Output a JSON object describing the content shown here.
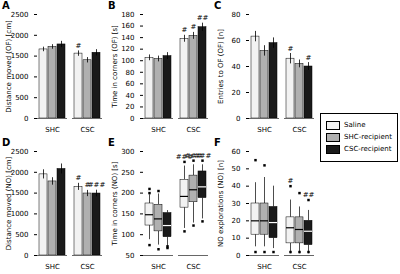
{
  "chart_data": [
    {
      "type": "bar",
      "title": "A",
      "ylabel": "Distance moved (OF) [cm]",
      "categories": [
        "SHC",
        "CSC"
      ],
      "series": [
        {
          "name": "Saline",
          "color": "#f2f2f2",
          "values": [
            1660,
            1560
          ],
          "errors": [
            55,
            65
          ],
          "sig": [
            null,
            "#"
          ]
        },
        {
          "name": "SHC-recipient",
          "color": "#b0b0b0",
          "values": [
            1720,
            1400
          ],
          "errors": [
            55,
            65
          ],
          "sig": [
            null,
            null
          ]
        },
        {
          "name": "CSC-recipient",
          "color": "#1a1a1a",
          "values": [
            1780,
            1580
          ],
          "errors": [
            75,
            75
          ],
          "sig": [
            null,
            null
          ]
        }
      ],
      "ylim": [
        0,
        2500
      ],
      "yticks": [
        0,
        500,
        1000,
        1500,
        2000,
        2500
      ]
    },
    {
      "type": "bar",
      "title": "B",
      "ylabel": "Time in corners (OF) [s]",
      "categories": [
        "SHC",
        "CSC"
      ],
      "series": [
        {
          "name": "Saline",
          "color": "#f2f2f2",
          "values": [
            105,
            138
          ],
          "errors": [
            5,
            6
          ],
          "sig": [
            null,
            "#"
          ]
        },
        {
          "name": "SHC-recipient",
          "color": "#b0b0b0",
          "values": [
            103,
            143
          ],
          "errors": [
            5,
            6
          ],
          "sig": [
            null,
            "#"
          ]
        },
        {
          "name": "CSC-recipient",
          "color": "#1a1a1a",
          "values": [
            108,
            158
          ],
          "errors": [
            6,
            7
          ],
          "sig": [
            null,
            "##"
          ]
        }
      ],
      "ylim": [
        0,
        180
      ],
      "yticks": [
        0,
        20,
        40,
        60,
        80,
        100,
        120,
        140,
        160,
        180
      ]
    },
    {
      "type": "bar",
      "title": "C",
      "ylabel": "Entries to OF (OF) [n]",
      "categories": [
        "SHC",
        "CSC"
      ],
      "series": [
        {
          "name": "Saline",
          "color": "#f2f2f2",
          "values": [
            63,
            46
          ],
          "errors": [
            4,
            4
          ],
          "sig": [
            null,
            "#"
          ]
        },
        {
          "name": "SHC-recipient",
          "color": "#b0b0b0",
          "values": [
            52,
            42
          ],
          "errors": [
            4,
            3
          ],
          "sig": [
            null,
            null
          ]
        },
        {
          "name": "CSC-recipient",
          "color": "#1a1a1a",
          "values": [
            58,
            40
          ],
          "errors": [
            4,
            3
          ],
          "sig": [
            null,
            "#"
          ]
        }
      ],
      "ylim": [
        0,
        80
      ],
      "yticks": [
        0,
        20,
        40,
        60,
        80
      ]
    },
    {
      "type": "bar",
      "title": "D",
      "ylabel": "Distance moved (NO) [cm]",
      "categories": [
        "SHC",
        "CSC"
      ],
      "series": [
        {
          "name": "Saline",
          "color": "#f2f2f2",
          "values": [
            1950,
            1650
          ],
          "errors": [
            110,
            85
          ],
          "sig": [
            null,
            "#"
          ]
        },
        {
          "name": "SHC-recipient",
          "color": "#b0b0b0",
          "values": [
            1780,
            1490
          ],
          "errors": [
            90,
            75
          ],
          "sig": [
            null,
            "#"
          ]
        },
        {
          "name": "CSC-recipient",
          "color": "#1a1a1a",
          "values": [
            2080,
            1490
          ],
          "errors": [
            120,
            80
          ],
          "sig": [
            null,
            "###"
          ]
        }
      ],
      "ylim": [
        0,
        2500
      ],
      "yticks": [
        0,
        500,
        1000,
        1500,
        2000,
        2500
      ]
    },
    {
      "type": "box",
      "title": "E",
      "ylabel": "Time in corners (NO) [s]",
      "categories": [
        "SHC",
        "CSC"
      ],
      "series": [
        {
          "name": "Saline",
          "color": "#f2f2f2",
          "boxes": [
            {
              "median": 148,
              "q1": 122,
              "q3": 175,
              "whislo": 88,
              "whishi": 196,
              "fliers": [
                75,
                200,
                210
              ]
            },
            {
              "median": 192,
              "q1": 165,
              "q3": 232,
              "whislo": 115,
              "whishi": 265,
              "fliers": [
                108,
                275
              ]
            }
          ],
          "sig": [
            null,
            "###"
          ]
        },
        {
          "name": "SHC-recipient",
          "color": "#b0b0b0",
          "boxes": [
            {
              "median": 138,
              "q1": 108,
              "q3": 172,
              "whislo": 75,
              "whishi": 198,
              "fliers": [
                65,
                205
              ]
            },
            {
              "median": 208,
              "q1": 178,
              "q3": 242,
              "whislo": 128,
              "whishi": 268,
              "fliers": [
                122,
                278
              ]
            }
          ],
          "sig": [
            null,
            "###"
          ]
        },
        {
          "name": "CSC-recipient",
          "color": "#1a1a1a",
          "boxes": [
            {
              "median": 122,
              "q1": 94,
              "q3": 152,
              "whislo": 72,
              "whishi": 158,
              "fliers": [
                68,
                72
              ]
            },
            {
              "median": 215,
              "q1": 188,
              "q3": 252,
              "whislo": 138,
              "whishi": 268,
              "fliers": [
                132,
                278
              ]
            }
          ],
          "sig": [
            null,
            "###"
          ]
        }
      ],
      "ylim": [
        50,
        300
      ],
      "yticks": [
        50,
        100,
        150,
        200,
        250,
        300
      ]
    },
    {
      "type": "box",
      "title": "F",
      "ylabel": "NO explorations (NO) [n]",
      "categories": [
        "SHC",
        "CSC"
      ],
      "series": [
        {
          "name": "Saline",
          "color": "#f2f2f2",
          "boxes": [
            {
              "median": 20,
              "q1": 12,
              "q3": 30,
              "whislo": 5,
              "whishi": 42,
              "fliers": [
                55,
                2
              ]
            },
            {
              "median": 16,
              "q1": 7,
              "q3": 22,
              "whislo": 1,
              "whishi": 32,
              "fliers": [
                40,
                2
              ]
            }
          ],
          "sig": [
            null,
            "#"
          ]
        },
        {
          "name": "SHC-recipient",
          "color": "#b0b0b0",
          "boxes": [
            {
              "median": 20,
              "q1": 12,
              "q3": 30,
              "whislo": 5,
              "whishi": 45,
              "fliers": [
                52,
                2
              ]
            },
            {
              "median": 15,
              "q1": 7,
              "q3": 22,
              "whislo": 1,
              "whishi": 28,
              "fliers": [
                36,
                2
              ]
            }
          ],
          "sig": [
            null,
            null
          ]
        },
        {
          "name": "CSC-recipient",
          "color": "#1a1a1a",
          "boxes": [
            {
              "median": 19,
              "q1": 10,
              "q3": 28,
              "whislo": 4,
              "whishi": 40,
              "fliers": [
                2
              ]
            },
            {
              "median": 14,
              "q1": 6,
              "q3": 20,
              "whislo": 1,
              "whishi": 26,
              "fliers": [
                32,
                2
              ]
            }
          ],
          "sig": [
            null,
            "##"
          ]
        }
      ],
      "ylim": [
        0,
        60
      ],
      "yticks": [
        0,
        10,
        20,
        30,
        40,
        50,
        60
      ]
    }
  ]
}
